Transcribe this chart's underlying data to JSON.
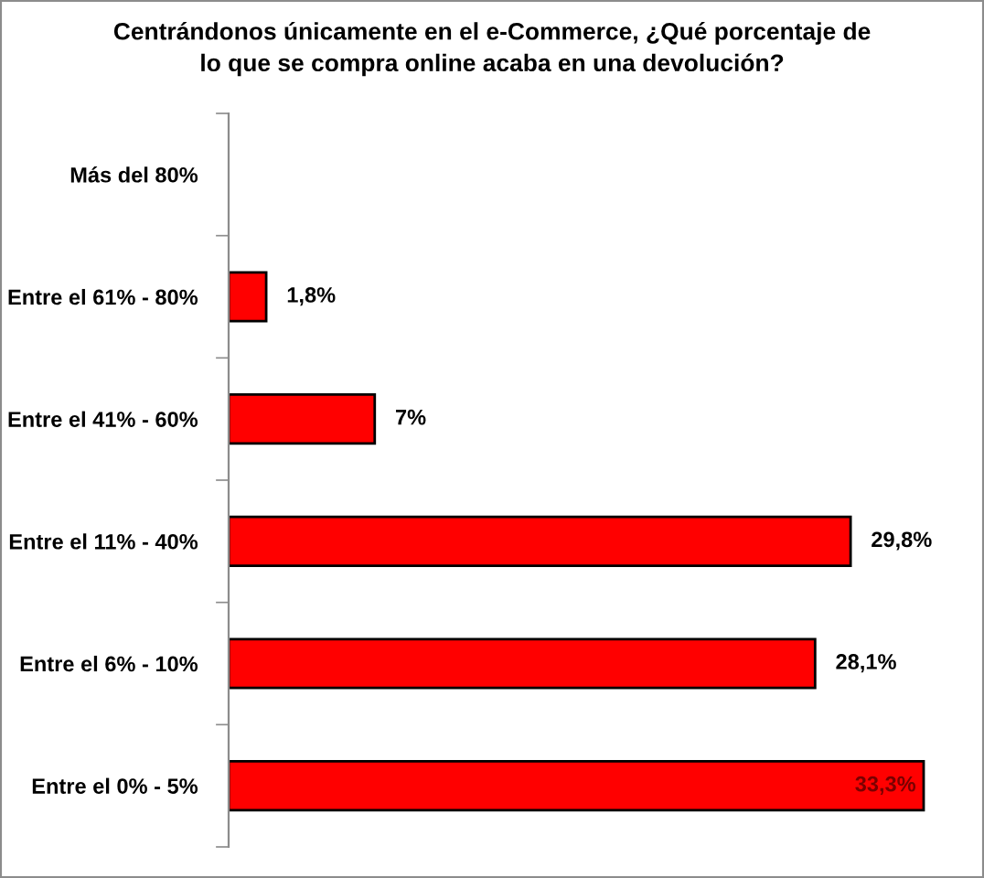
{
  "chart_data": {
    "type": "bar",
    "orientation": "horizontal",
    "title": "Centrándonos únicamente en el e-Commerce, ¿Qué porcentaje de\nlo que se compra online acaba en una devolución?",
    "categories": [
      "Más del 80%",
      "Entre el 61% - 80%",
      "Entre el 41% - 60%",
      "Entre el 11% - 40%",
      "Entre el 6% - 10%",
      "Entre el 0% - 5%"
    ],
    "values": [
      null,
      1.8,
      7,
      29.8,
      28.1,
      33.3
    ],
    "value_labels": [
      null,
      "1,8%",
      "7%",
      "29,8%",
      "28,1%",
      "33,3%"
    ],
    "color": "#ff0000"
  }
}
